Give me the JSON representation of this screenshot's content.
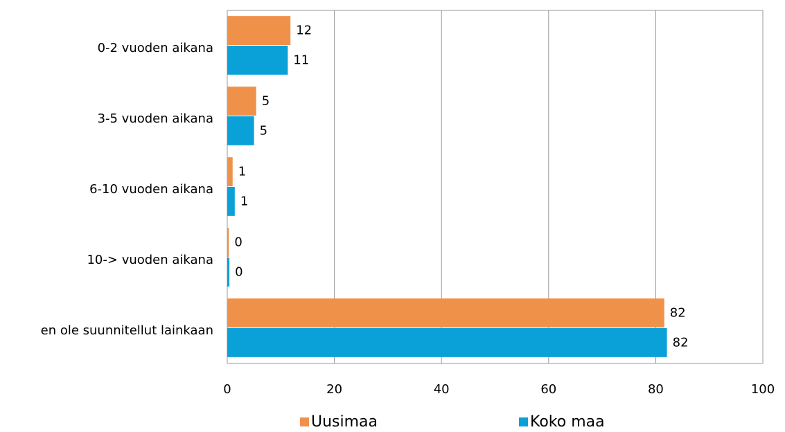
{
  "chart_data": {
    "type": "bar",
    "orientation": "horizontal",
    "categories": [
      "0-2 vuoden aikana",
      "3-5 vuoden aikana",
      "6-10 vuoden aikana",
      "10-> vuoden aikana",
      "en ole suunnitellut lainkaan"
    ],
    "series": [
      {
        "name": "Uusimaa",
        "color": "#f0914a",
        "values": [
          11.8,
          5.4,
          1.0,
          0.3,
          81.6
        ],
        "value_labels": [
          "12",
          "5",
          "1",
          "0",
          "82"
        ]
      },
      {
        "name": "Koko maa",
        "color": "#0aa0d8",
        "values": [
          11.3,
          5.0,
          1.4,
          0.4,
          82.1
        ],
        "value_labels": [
          "11",
          "5",
          "1",
          "0",
          "82"
        ]
      }
    ],
    "xlim": [
      0,
      100
    ],
    "xticks": [
      0,
      20,
      40,
      60,
      80,
      100
    ],
    "grid": true,
    "legend": "bottom"
  }
}
